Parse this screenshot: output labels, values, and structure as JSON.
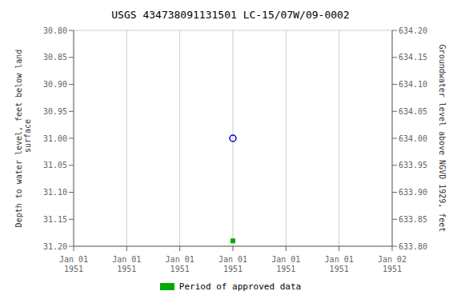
{
  "chart_data": {
    "type": "scatter",
    "title": "USGS 434738091131501 LC-15/07W/09-0002",
    "y_label": "Depth to water level, feet below land\n surface",
    "y2_label": "Groundwater level above NGVD 1929, feet",
    "categories": [
      "Jan 01\n1951",
      "Jan 01\n1951",
      "Jan 01\n1951",
      "Jan 01\n1951",
      "Jan 01\n1951",
      "Jan 01\n1951",
      "Jan 02\n1951"
    ],
    "series": [
      {
        "color": "#0000cc",
        "marker": "circle",
        "values": [
          null,
          null,
          null,
          31.0,
          null,
          null,
          null
        ]
      },
      {
        "name": "Period of approved data",
        "color": "#00aa00",
        "marker": "square",
        "values": [
          null,
          null,
          null,
          31.19,
          null,
          null,
          null
        ]
      }
    ],
    "ylim": [
      31.2,
      30.8
    ],
    "yticks": [
      {
        "value": 30.8,
        "label": "30.80"
      },
      {
        "value": 30.85,
        "label": "30.85"
      },
      {
        "value": 30.9,
        "label": "30.90"
      },
      {
        "value": 30.95,
        "label": "30.95"
      },
      {
        "value": 31.0,
        "label": "31.00"
      },
      {
        "value": 31.05,
        "label": "31.05"
      },
      {
        "value": 31.1,
        "label": "31.10"
      },
      {
        "value": 31.15,
        "label": "31.15"
      },
      {
        "value": 31.2,
        "label": "31.20"
      }
    ],
    "y2lim": [
      633.8,
      634.2
    ],
    "y2ticks": [
      {
        "value": 634.2,
        "label": "634.20"
      },
      {
        "value": 634.15,
        "label": "634.15"
      },
      {
        "value": 634.1,
        "label": "634.10"
      },
      {
        "value": 634.05,
        "label": "634.05"
      },
      {
        "value": 634.0,
        "label": "634.00"
      },
      {
        "value": 633.95,
        "label": "633.95"
      },
      {
        "value": 633.9,
        "label": "633.90"
      },
      {
        "value": 633.85,
        "label": "633.85"
      },
      {
        "value": 633.8,
        "label": "633.80"
      }
    ],
    "grid": true,
    "legend": "bottom"
  }
}
